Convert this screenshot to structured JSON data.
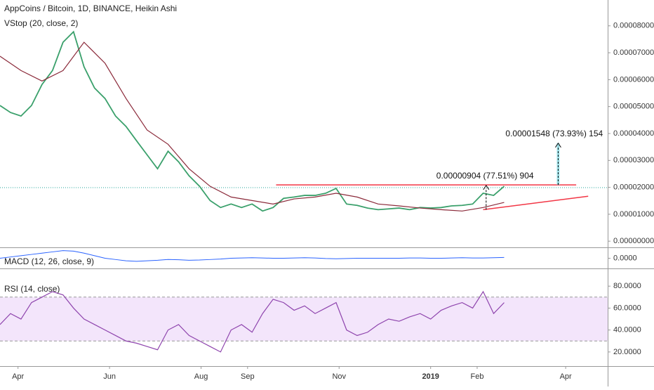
{
  "chart_data": {
    "type": "line",
    "title": "AppCoins / Bitcoin, 1D, BINANCE, Heikin Ashi",
    "overlay_label": "VStop (20, close, 2)",
    "xlim": [
      0,
      405
    ],
    "xticks": [
      {
        "value": 12,
        "label": "Apr"
      },
      {
        "value": 73,
        "label": "Jun"
      },
      {
        "value": 134,
        "label": "Aug"
      },
      {
        "value": 165,
        "label": "Sep"
      },
      {
        "value": 226,
        "label": "Nov"
      },
      {
        "value": 287,
        "label": "2019"
      },
      {
        "value": 318,
        "label": "Feb"
      },
      {
        "value": 377,
        "label": "Apr"
      }
    ],
    "ylim": [
      -2.3e-06,
      8.96e-05
    ],
    "yticks": [
      {
        "value": 0,
        "label": "0.00000000"
      },
      {
        "value": 1e-05,
        "label": "0.00001000"
      },
      {
        "value": 2e-05,
        "label": "0.00002000"
      },
      {
        "value": 3e-05,
        "label": "0.00003000"
      },
      {
        "value": 4e-05,
        "label": "0.00004000"
      },
      {
        "value": 5e-05,
        "label": "0.00005000"
      },
      {
        "value": 6e-05,
        "label": "0.00006000"
      },
      {
        "value": 7e-05,
        "label": "0.00007000"
      },
      {
        "value": 8e-05,
        "label": "0.00008000"
      }
    ],
    "last_price": 1.99e-05,
    "series": [
      {
        "color": "#3aa06b",
        "x": [
          0,
          7,
          14,
          21,
          28,
          35,
          42,
          49,
          56,
          63,
          70,
          77,
          84,
          91,
          98,
          105,
          112,
          119,
          126,
          133,
          140,
          147,
          154,
          161,
          168,
          175,
          182,
          189,
          196,
          203,
          210,
          217,
          224,
          231,
          238,
          245,
          252,
          259,
          266,
          273,
          280,
          287,
          294,
          301,
          308,
          315,
          322,
          329,
          336
        ],
        "values": [
          5.04e-05,
          4.78e-05,
          4.65e-05,
          5.04e-05,
          5.82e-05,
          6.34e-05,
          7.39e-05,
          7.78e-05,
          6.48e-05,
          5.69e-05,
          5.3e-05,
          4.65e-05,
          4.26e-05,
          3.73e-05,
          3.21e-05,
          2.69e-05,
          3.34e-05,
          2.95e-05,
          2.43e-05,
          2.04e-05,
          1.51e-05,
          1.25e-05,
          1.38e-05,
          1.25e-05,
          1.38e-05,
          1.12e-05,
          1.25e-05,
          1.59e-05,
          1.64e-05,
          1.7e-05,
          1.7e-05,
          1.78e-05,
          1.96e-05,
          1.38e-05,
          1.33e-05,
          1.23e-05,
          1.17e-05,
          1.2e-05,
          1.23e-05,
          1.17e-05,
          1.25e-05,
          1.23e-05,
          1.25e-05,
          1.31e-05,
          1.33e-05,
          1.38e-05,
          1.78e-05,
          1.7e-05,
          2.04e-05
        ]
      },
      {
        "color": "#8b2a3a",
        "x": [
          0,
          14,
          28,
          42,
          56,
          70,
          84,
          98,
          112,
          126,
          140,
          154,
          168,
          182,
          196,
          210,
          224,
          238,
          252,
          266,
          280,
          294,
          308,
          322,
          336
        ],
        "values": [
          6.87e-05,
          6.34e-05,
          5.95e-05,
          6.34e-05,
          7.39e-05,
          6.61e-05,
          5.3e-05,
          4.13e-05,
          3.6e-05,
          2.69e-05,
          2.04e-05,
          1.64e-05,
          1.51e-05,
          1.38e-05,
          1.57e-05,
          1.64e-05,
          1.78e-05,
          1.64e-05,
          1.38e-05,
          1.31e-05,
          1.23e-05,
          1.17e-05,
          1.12e-05,
          1.25e-05,
          1.44e-05
        ]
      }
    ],
    "lines": [
      {
        "color": "#f23645",
        "x": [
          184,
          384
        ],
        "values": [
          2.09e-05,
          2.09e-05
        ]
      },
      {
        "color": "#f23645",
        "x": [
          322,
          392
        ],
        "values": [
          1.17e-05,
          1.67e-05
        ]
      }
    ],
    "measures": [
      {
        "text": "0.00000904 (77.51%) 904",
        "x": 324,
        "values": [
          1.17e-05,
          2.07e-05
        ]
      },
      {
        "text": "0.00001548 (73.93%) 154",
        "x": 372,
        "values": [
          2.09e-05,
          3.64e-05
        ]
      }
    ],
    "macd": {
      "label": "MACD (12, 26, close, 9)",
      "color": "#2962ff",
      "ylim": [
        -4e-06,
        4e-06
      ],
      "yticks": [
        {
          "value": 0,
          "label": "0.0000"
        }
      ],
      "values": [
        0,
        5e-07,
        1e-06,
        1.5e-06,
        2e-06,
        2.5e-06,
        3e-06,
        2.8e-06,
        2e-06,
        1e-06,
        0,
        -5e-07,
        -1e-06,
        -1.2e-06,
        -1e-06,
        -8e-07,
        -5e-07,
        -6e-07,
        -8e-07,
        -7e-07,
        -5e-07,
        -3e-07,
        0,
        1e-07,
        2e-07,
        1e-07,
        0,
        0,
        1e-07,
        2e-07,
        1e-07,
        -1e-07,
        -2e-07,
        -1e-07,
        0,
        0,
        0,
        0,
        0,
        1e-07,
        1e-07,
        0,
        0,
        1e-07,
        2e-07,
        1e-07,
        1e-07,
        2e-07,
        3e-07
      ]
    },
    "rsi": {
      "label": "RSI (14, close)",
      "color": "#8e44ad",
      "ylim": [
        7.1,
        95.5
      ],
      "band": [
        30,
        70
      ],
      "yticks": [
        {
          "value": 20,
          "label": "20.0000"
        },
        {
          "value": 40,
          "label": "40.0000"
        },
        {
          "value": 60,
          "label": "60.0000"
        },
        {
          "value": 80,
          "label": "80.0000"
        }
      ],
      "values": [
        45,
        55,
        50,
        65,
        70,
        75,
        72,
        60,
        50,
        45,
        40,
        35,
        30,
        28,
        25,
        22,
        40,
        45,
        35,
        30,
        25,
        20,
        40,
        45,
        38,
        55,
        68,
        65,
        58,
        62,
        55,
        60,
        65,
        40,
        35,
        38,
        45,
        50,
        48,
        52,
        55,
        50,
        58,
        62,
        65,
        60,
        75,
        55,
        65
      ]
    }
  }
}
